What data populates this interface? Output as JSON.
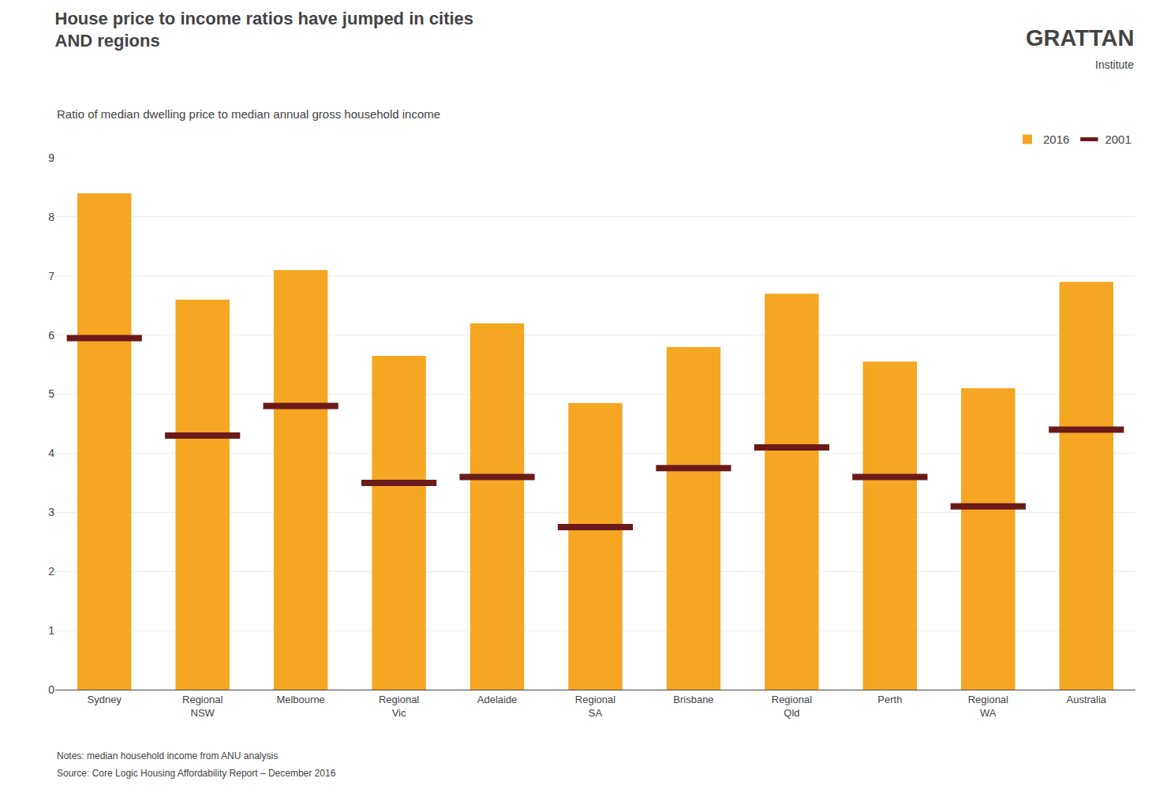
{
  "chart_data": {
    "type": "bar",
    "title": "House price to income ratios have jumped in cities\nAND regions",
    "subtitle": "Ratio of median dwelling price to median annual gross household income",
    "categories": [
      "Sydney",
      "Regional\nNSW",
      "Melbourne",
      "Regional\nVic",
      "Adelaide",
      "Regional\nSA",
      "Brisbane",
      "Regional\nQld",
      "Perth",
      "Regional\nWA",
      "Australia"
    ],
    "series": [
      {
        "name": "2016",
        "type": "bar",
        "color": "#F5A623",
        "values": [
          8.4,
          6.6,
          7.1,
          5.65,
          6.2,
          4.85,
          5.8,
          6.7,
          5.55,
          5.1,
          6.9
        ]
      },
      {
        "name": "2001",
        "type": "scatter",
        "marker": "line",
        "color": "#6B1A1A",
        "values": [
          5.95,
          4.3,
          4.8,
          3.5,
          3.6,
          2.75,
          3.75,
          4.1,
          3.6,
          3.1,
          4.4
        ]
      }
    ],
    "ylim": [
      0,
      9
    ],
    "yticks": [
      0,
      1,
      2,
      3,
      4,
      5,
      6,
      7,
      8,
      9
    ],
    "grid": true,
    "legend": "top",
    "annotations": [
      "GRATTAN",
      "Institute",
      "Notes: median household income from ANU analysis",
      "Source: Core Logic Housing Affordability Report – December 2016"
    ]
  }
}
